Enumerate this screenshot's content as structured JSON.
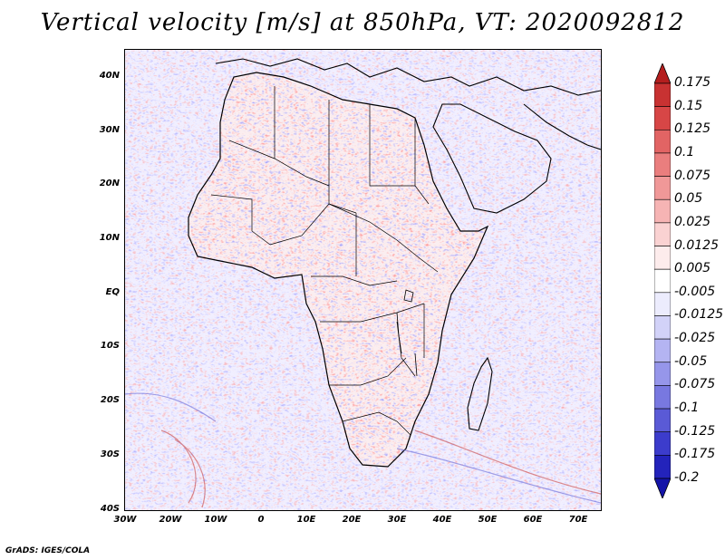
{
  "title": "Vertical velocity [m/s] at 850hPa, VT: 2020092812",
  "credit": "GrADS: IGES/COLA",
  "map": {
    "region": "Africa and Middle East",
    "variable": "vertical velocity",
    "units": "m/s",
    "level": "850hPa",
    "valid_time": "2020092812"
  },
  "y_axis": {
    "labels": [
      "40N",
      "30N",
      "20N",
      "10N",
      "EQ",
      "10S",
      "20S",
      "30S",
      "40S"
    ],
    "latitudes": [
      40,
      30,
      20,
      10,
      0,
      -10,
      -20,
      -30,
      -40
    ]
  },
  "x_axis": {
    "labels": [
      "30W",
      "20W",
      "10W",
      "0",
      "10E",
      "20E",
      "30E",
      "40E",
      "50E",
      "60E",
      "70E"
    ],
    "longitudes": [
      -30,
      -20,
      -10,
      0,
      10,
      20,
      30,
      40,
      50,
      60,
      70
    ]
  },
  "colorbar": {
    "labels": [
      "0.175",
      "0.15",
      "0.125",
      "0.1",
      "0.075",
      "0.05",
      "0.025",
      "0.0125",
      "0.005",
      "-0.005",
      "-0.0125",
      "-0.025",
      "-0.05",
      "-0.075",
      "-0.1",
      "-0.125",
      "-0.175",
      "-0.2"
    ],
    "colors": [
      "#b41e1e",
      "#c83232",
      "#d74646",
      "#e26464",
      "#ea7e7e",
      "#f09898",
      "#f6b4b4",
      "#fad2d2",
      "#fdecec",
      "#ffffff",
      "#ececfd",
      "#d2d2f8",
      "#b4b4f2",
      "#9696ea",
      "#7878e0",
      "#5a5ad6",
      "#3c3ccc",
      "#2323bb",
      "#1414a8"
    ]
  }
}
